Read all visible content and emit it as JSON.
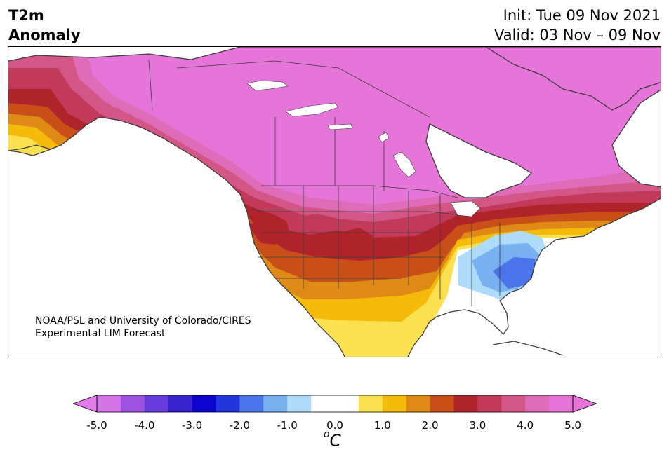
{
  "header": {
    "variable": "T2m",
    "type": "Anomaly",
    "init": "Init: Tue 09 Nov 2021",
    "valid": "Valid: 03 Nov – 09 Nov"
  },
  "credit": {
    "line1": "NOAA/PSL and University of Colorado/CIRES",
    "line2": "Experimental LIM Forecast"
  },
  "colorbar": {
    "unit_symbol": "C",
    "unit_degree": "o",
    "ticks": [
      "-5.0",
      "-4.0",
      "-3.0",
      "-2.0",
      "-1.0",
      "0.0",
      "1.0",
      "2.0",
      "3.0",
      "4.0",
      "5.0"
    ],
    "colors": [
      "#d473e8",
      "#9f52e0",
      "#6a3bdc",
      "#3a24d2",
      "#0b05cf",
      "#2535dd",
      "#4a74e8",
      "#78b1f2",
      "#aedbfa",
      "#ffffff",
      "#ffffff",
      "#fbe050",
      "#f4bb0a",
      "#df8a16",
      "#c85018",
      "#b1232b",
      "#c23a59",
      "#d45686",
      "#df6cb8",
      "#e575d8"
    ],
    "under_color": "#e07be8",
    "over_color": "#e575d8"
  },
  "legend_colors": {
    "land_border": "#3c3c3c",
    "strong_warm": "#e575d8",
    "cool": "#4a74e8"
  }
}
